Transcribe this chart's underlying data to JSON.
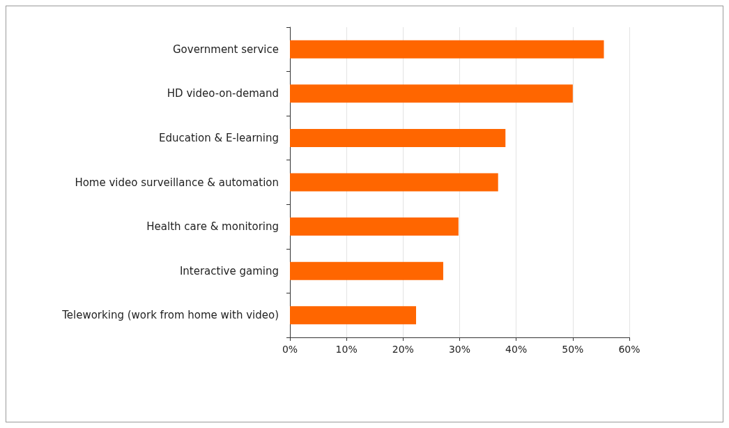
{
  "chart_data": {
    "type": "bar",
    "orientation": "horizontal",
    "categories": [
      "Government service",
      "HD video-on-demand",
      "Education & E-learning",
      "Home video surveillance & automation",
      "Health care & monitoring",
      "Interactive gaming",
      "Teleworking (work from home with video)"
    ],
    "values": [
      55.5,
      50,
      38.1,
      36.8,
      29.8,
      27.1,
      22.3
    ],
    "color": "#ff6600",
    "xlim": [
      0,
      60
    ],
    "xticks": [
      {
        "value": 0,
        "label": "0%"
      },
      {
        "value": 10,
        "label": "10%"
      },
      {
        "value": 20,
        "label": "20%"
      },
      {
        "value": 30,
        "label": "30%"
      },
      {
        "value": 40,
        "label": "40%"
      },
      {
        "value": 50,
        "label": "50%"
      },
      {
        "value": 60,
        "label": "60%"
      }
    ],
    "grid": "x"
  }
}
